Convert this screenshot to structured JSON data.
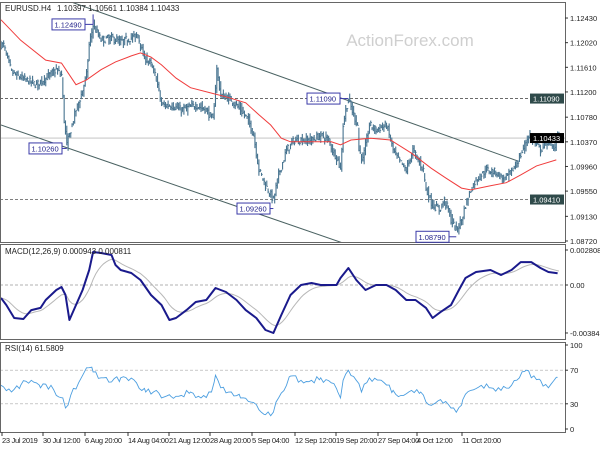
{
  "header": {
    "symbol": "EURUSD.H4",
    "ohlc": "1.10397 1.10561 1.10384 1.10433"
  },
  "watermark": "ActionForex.com",
  "colors": {
    "bars": "#46738f",
    "ma": "#f03c3c",
    "macd": "#1a1a8c",
    "signal": "#b8b8b8",
    "rsi": "#4d9fe0",
    "label_border": "#3a3aa8",
    "tag_dark": "#2f4a4a",
    "tag_last": "#000000"
  },
  "chart_data": [
    {
      "type": "line",
      "title": "EURUSD.H4",
      "price_axis": {
        "ticks": [
          "1.12430",
          "1.12020",
          "1.11610",
          "1.11200",
          "1.10780",
          "1.10370",
          "1.09960",
          "1.09550",
          "1.09130",
          "1.08720"
        ],
        "range": [
          1.0867,
          1.127
        ]
      },
      "time_axis": {
        "ticks": [
          "23 Jul 2019",
          "30 Jul 12:00",
          "6 Aug 20:00",
          "14 Aug 04:00",
          "21 Aug 12:00",
          "28 Aug 20:00",
          "5 Sep 04:00",
          "12 Sep 12:00",
          "19 Sep 20:00",
          "27 Sep 04:00",
          "4 Oct 12:00",
          "11 Oct 20:00"
        ]
      },
      "close": [
        [
          2,
          1.1198
        ],
        [
          4,
          1.1181
        ],
        [
          8,
          1.1153
        ],
        [
          11,
          1.1148
        ],
        [
          19,
          1.114
        ],
        [
          27,
          1.1132
        ],
        [
          34,
          1.1143
        ],
        [
          42,
          1.1157
        ],
        [
          46,
          1.1148
        ],
        [
          48,
          1.1073
        ],
        [
          50,
          1.1032
        ],
        [
          53,
          1.1057
        ],
        [
          57,
          1.109
        ],
        [
          61,
          1.1115
        ],
        [
          65,
          1.1148
        ],
        [
          67,
          1.1198
        ],
        [
          70,
          1.1231
        ],
        [
          76,
          1.1206
        ],
        [
          84,
          1.121
        ],
        [
          91,
          1.1203
        ],
        [
          99,
          1.121
        ],
        [
          104,
          1.1215
        ],
        [
          108,
          1.1181
        ],
        [
          114,
          1.1165
        ],
        [
          118,
          1.1143
        ],
        [
          122,
          1.1098
        ],
        [
          129,
          1.1098
        ],
        [
          137,
          1.109
        ],
        [
          148,
          1.1098
        ],
        [
          156,
          1.109
        ],
        [
          161,
          1.1073
        ],
        [
          164,
          1.1157
        ],
        [
          167,
          1.1115
        ],
        [
          175,
          1.1107
        ],
        [
          182,
          1.109
        ],
        [
          188,
          1.1073
        ],
        [
          192,
          1.1048
        ],
        [
          196,
          1.099
        ],
        [
          201,
          1.0965
        ],
        [
          207,
          1.094
        ],
        [
          211,
          1.0982
        ],
        [
          217,
          1.1023
        ],
        [
          223,
          1.104
        ],
        [
          228,
          1.104
        ],
        [
          236,
          1.104
        ],
        [
          243,
          1.1048
        ],
        [
          249,
          1.104
        ],
        [
          252,
          1.1023
        ],
        [
          256,
          1.1007
        ],
        [
          258,
          1.099
        ],
        [
          260,
          1.1065
        ],
        [
          262,
          1.109
        ],
        [
          264,
          1.1107
        ],
        [
          268,
          1.1082
        ],
        [
          271,
          1.1065
        ],
        [
          272,
          1.1023
        ],
        [
          275,
          1.1007
        ],
        [
          280,
          1.1065
        ],
        [
          285,
          1.1057
        ],
        [
          293,
          1.1065
        ],
        [
          298,
          1.1023
        ],
        [
          302,
          1.1007
        ],
        [
          308,
          1.099
        ],
        [
          313,
          1.1023
        ],
        [
          317,
          1.1007
        ],
        [
          321,
          1.099
        ],
        [
          323,
          1.0957
        ],
        [
          328,
          1.0932
        ],
        [
          333,
          1.0924
        ],
        [
          337,
          1.094
        ],
        [
          340,
          1.0924
        ],
        [
          342,
          1.0907
        ],
        [
          346,
          1.089
        ],
        [
          350,
          1.0907
        ],
        [
          353,
          1.0932
        ],
        [
          357,
          1.0957
        ],
        [
          361,
          1.0974
        ],
        [
          369,
          1.099
        ],
        [
          376,
          1.0987
        ],
        [
          382,
          1.0974
        ],
        [
          386,
          1.0982
        ],
        [
          391,
          1.0998
        ],
        [
          395,
          1.1015
        ],
        [
          401,
          1.1048
        ],
        [
          404,
          1.104
        ],
        [
          410,
          1.1023
        ],
        [
          416,
          1.104
        ],
        [
          420,
          1.1023
        ],
        [
          423,
          1.1053
        ],
        [
          424,
          1.10433
        ]
      ],
      "moving_average": [
        [
          0,
          1.124
        ],
        [
          15,
          1.1206
        ],
        [
          34,
          1.1173
        ],
        [
          46,
          1.1168
        ],
        [
          57,
          1.1132
        ],
        [
          65,
          1.114
        ],
        [
          76,
          1.1157
        ],
        [
          87,
          1.117
        ],
        [
          99,
          1.118
        ],
        [
          106,
          1.1185
        ],
        [
          114,
          1.1178
        ],
        [
          122,
          1.1165
        ],
        [
          133,
          1.1143
        ],
        [
          144,
          1.1127
        ],
        [
          160,
          1.1118
        ],
        [
          171,
          1.1112
        ],
        [
          186,
          1.1102
        ],
        [
          196,
          1.1082
        ],
        [
          205,
          1.1065
        ],
        [
          213,
          1.1043
        ],
        [
          220,
          1.1037
        ],
        [
          251,
          1.1037
        ],
        [
          258,
          1.1032
        ],
        [
          266,
          1.104
        ],
        [
          281,
          1.1043
        ],
        [
          296,
          1.104
        ],
        [
          312,
          1.1018
        ],
        [
          327,
          1.0993
        ],
        [
          338,
          1.0977
        ],
        [
          350,
          1.096
        ],
        [
          357,
          1.0957
        ],
        [
          372,
          1.0964
        ],
        [
          384,
          1.0969
        ],
        [
          395,
          1.0982
        ],
        [
          407,
          1.0997
        ],
        [
          422,
          1.1007
        ]
      ],
      "channel_upper": [
        [
          53,
          1.127
        ],
        [
          393,
          1.1005
        ]
      ],
      "channel_lower": [
        [
          0,
          1.1065
        ],
        [
          258,
          1.087
        ]
      ],
      "horizontal_levels": {
        "dashed": [
          1.1109,
          1.0941
        ],
        "last_price": 1.10433
      },
      "annotations": [
        {
          "text": "1.12490",
          "bar": 70,
          "price": 1.1249
        },
        {
          "text": "1.10260",
          "bar": 50,
          "price": 1.1026
        },
        {
          "text": "1.09260",
          "bar": 207,
          "price": 1.0926
        },
        {
          "text": "1.11090",
          "bar": 264,
          "price": 1.1109
        },
        {
          "text": "1.08790",
          "bar": 346,
          "price": 1.0879
        }
      ],
      "price_tags": [
        "1.11090",
        "1.10433",
        "1.09410"
      ]
    },
    {
      "type": "line",
      "title": "MACD(12,26,9) 0.000943 0.000811",
      "axis": {
        "ticks": [
          "0.002808",
          "0.00",
          "-0.003848"
        ],
        "range": [
          -0.003848,
          0.002808
        ]
      },
      "macd": [
        [
          0,
          -0.00104
        ],
        [
          4,
          -0.0016
        ],
        [
          10,
          -0.00265
        ],
        [
          17,
          -0.00273
        ],
        [
          23,
          -0.00201
        ],
        [
          30,
          -0.00184
        ],
        [
          34,
          -0.0012
        ],
        [
          42,
          -0.0004
        ],
        [
          46,
          -0.00016
        ],
        [
          49,
          -0.0008
        ],
        [
          52,
          -0.00281
        ],
        [
          57,
          -0.0016
        ],
        [
          62,
          -0.0004
        ],
        [
          67,
          0.0012
        ],
        [
          70,
          0.00265
        ],
        [
          76,
          0.00257
        ],
        [
          84,
          0.00241
        ],
        [
          87,
          0.0016
        ],
        [
          91,
          0.0012
        ],
        [
          99,
          0.00096
        ],
        [
          106,
          0.0004
        ],
        [
          114,
          -0.0008
        ],
        [
          122,
          -0.0016
        ],
        [
          128,
          -0.00281
        ],
        [
          133,
          -0.00265
        ],
        [
          141,
          -0.00201
        ],
        [
          148,
          -0.00136
        ],
        [
          156,
          -0.0012
        ],
        [
          163,
          -0.00024
        ],
        [
          171,
          -0.00056
        ],
        [
          179,
          -0.0012
        ],
        [
          186,
          -0.00201
        ],
        [
          194,
          -0.00265
        ],
        [
          201,
          -0.00361
        ],
        [
          207,
          -0.00385
        ],
        [
          213,
          -0.00241
        ],
        [
          220,
          -0.0008
        ],
        [
          228,
          0.0
        ],
        [
          236,
          0.00016
        ],
        [
          243,
          0.0
        ],
        [
          255,
          0.0
        ],
        [
          258,
          0.00056
        ],
        [
          264,
          0.00136
        ],
        [
          270,
          0.0004
        ],
        [
          277,
          -0.0004
        ],
        [
          285,
          0.0
        ],
        [
          293,
          0.0
        ],
        [
          300,
          -0.0004
        ],
        [
          308,
          -0.0012
        ],
        [
          315,
          -0.0012
        ],
        [
          323,
          -0.00184
        ],
        [
          328,
          -0.00265
        ],
        [
          334,
          -0.00217
        ],
        [
          342,
          -0.0016
        ],
        [
          348,
          -0.0004
        ],
        [
          353,
          0.00056
        ],
        [
          361,
          0.00104
        ],
        [
          372,
          0.0012
        ],
        [
          380,
          0.0008
        ],
        [
          388,
          0.0012
        ],
        [
          395,
          0.00184
        ],
        [
          403,
          0.00184
        ],
        [
          410,
          0.00136
        ],
        [
          416,
          0.00104
        ],
        [
          423,
          0.000943
        ]
      ]
    },
    {
      "type": "line",
      "title": "RSI(14) 61.5809",
      "axis": {
        "ticks": [
          "100",
          "70",
          "30",
          "0"
        ],
        "range": [
          0,
          100
        ],
        "levels": [
          70,
          30
        ]
      },
      "rsi": [
        [
          0,
          52
        ],
        [
          8,
          44
        ],
        [
          15,
          52
        ],
        [
          23,
          58
        ],
        [
          30,
          49
        ],
        [
          38,
          52
        ],
        [
          42,
          40
        ],
        [
          47,
          37
        ],
        [
          49,
          25
        ],
        [
          53,
          40
        ],
        [
          61,
          61
        ],
        [
          67,
          73
        ],
        [
          70,
          68
        ],
        [
          76,
          61
        ],
        [
          84,
          56
        ],
        [
          91,
          61
        ],
        [
          103,
          55
        ],
        [
          110,
          44
        ],
        [
          118,
          46
        ],
        [
          122,
          37
        ],
        [
          129,
          39
        ],
        [
          137,
          40
        ],
        [
          144,
          44
        ],
        [
          152,
          37
        ],
        [
          160,
          44
        ],
        [
          163,
          64
        ],
        [
          167,
          49
        ],
        [
          175,
          44
        ],
        [
          182,
          37
        ],
        [
          190,
          32
        ],
        [
          196,
          23
        ],
        [
          201,
          17
        ],
        [
          207,
          20
        ],
        [
          211,
          37
        ],
        [
          217,
          52
        ],
        [
          220,
          63
        ],
        [
          228,
          58
        ],
        [
          236,
          58
        ],
        [
          243,
          61
        ],
        [
          251,
          55
        ],
        [
          256,
          44
        ],
        [
          258,
          37
        ],
        [
          260,
          58
        ],
        [
          264,
          70
        ],
        [
          270,
          58
        ],
        [
          274,
          44
        ],
        [
          280,
          61
        ],
        [
          289,
          58
        ],
        [
          298,
          46
        ],
        [
          304,
          40
        ],
        [
          312,
          46
        ],
        [
          319,
          44
        ],
        [
          323,
          32
        ],
        [
          328,
          29
        ],
        [
          334,
          35
        ],
        [
          342,
          25
        ],
        [
          346,
          20
        ],
        [
          351,
          35
        ],
        [
          357,
          46
        ],
        [
          365,
          52
        ],
        [
          372,
          49
        ],
        [
          380,
          46
        ],
        [
          388,
          52
        ],
        [
          394,
          61
        ],
        [
          399,
          70
        ],
        [
          403,
          61
        ],
        [
          410,
          58
        ],
        [
          416,
          49
        ],
        [
          423,
          61.5809
        ]
      ]
    }
  ]
}
